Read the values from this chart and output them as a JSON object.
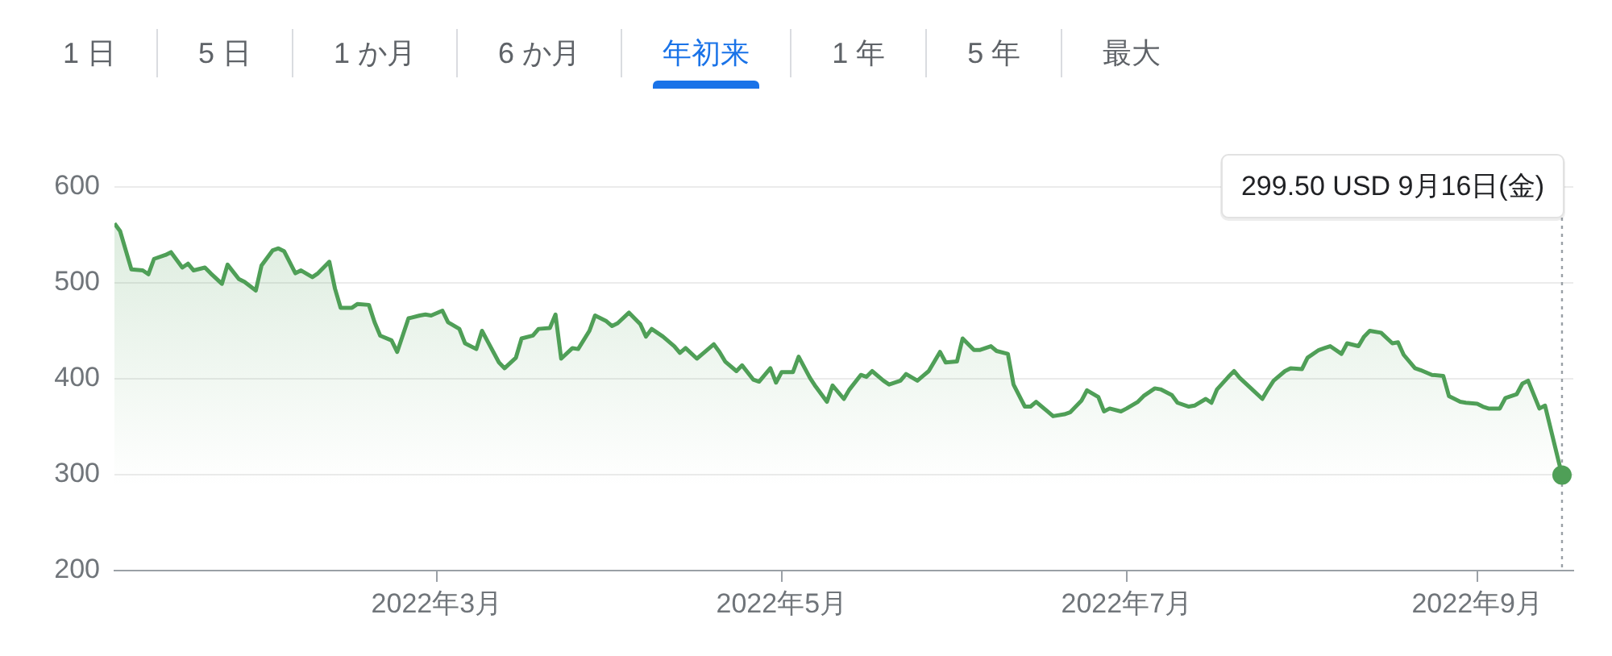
{
  "chart_data": {
    "type": "area",
    "annotations": [
      "1 日",
      "5 日",
      "1 か月",
      "6 か月",
      "年初来",
      "1 年",
      "5 年",
      "最大"
    ],
    "x": [
      "2022-01-03",
      "2022-01-04",
      "2022-01-06",
      "2022-01-08",
      "2022-01-09",
      "2022-01-10",
      "2022-01-12",
      "2022-01-13",
      "2022-01-15",
      "2022-01-16",
      "2022-01-17",
      "2022-01-19",
      "2022-01-20",
      "2022-01-22",
      "2022-01-23",
      "2022-01-25",
      "2022-01-26",
      "2022-01-28",
      "2022-01-29",
      "2022-01-31",
      "2022-02-01",
      "2022-02-02",
      "2022-02-04",
      "2022-02-05",
      "2022-02-07",
      "2022-02-08",
      "2022-02-10",
      "2022-02-11",
      "2022-02-12",
      "2022-02-14",
      "2022-02-15",
      "2022-02-17",
      "2022-02-18",
      "2022-02-19",
      "2022-02-21",
      "2022-02-22",
      "2022-02-24",
      "2022-02-26",
      "2022-02-27",
      "2022-02-28",
      "2022-03-02",
      "2022-03-03",
      "2022-03-05",
      "2022-03-06",
      "2022-03-08",
      "2022-03-09",
      "2022-03-10",
      "2022-03-12",
      "2022-03-13",
      "2022-03-15",
      "2022-03-16",
      "2022-03-18",
      "2022-03-19",
      "2022-03-21",
      "2022-03-22",
      "2022-03-23",
      "2022-03-25",
      "2022-03-26",
      "2022-03-28",
      "2022-03-29",
      "2022-03-31",
      "2022-04-01",
      "2022-04-02",
      "2022-04-04",
      "2022-04-06",
      "2022-04-07",
      "2022-04-08",
      "2022-04-10",
      "2022-04-12",
      "2022-04-13",
      "2022-04-14",
      "2022-04-16",
      "2022-04-17",
      "2022-04-19",
      "2022-04-20",
      "2022-04-21",
      "2022-04-23",
      "2022-04-24",
      "2022-04-26",
      "2022-04-27",
      "2022-04-29",
      "2022-04-30",
      "2022-05-01",
      "2022-05-03",
      "2022-05-04",
      "2022-05-06",
      "2022-05-07",
      "2022-05-09",
      "2022-05-10",
      "2022-05-12",
      "2022-05-13",
      "2022-05-15",
      "2022-05-16",
      "2022-05-17",
      "2022-05-19",
      "2022-05-20",
      "2022-05-22",
      "2022-05-23",
      "2022-05-25",
      "2022-05-26",
      "2022-05-27",
      "2022-05-29",
      "2022-05-30",
      "2022-06-01",
      "2022-06-02",
      "2022-06-04",
      "2022-06-05",
      "2022-06-07",
      "2022-06-08",
      "2022-06-10",
      "2022-06-11",
      "2022-06-13",
      "2022-06-14",
      "2022-06-15",
      "2022-06-17",
      "2022-06-18",
      "2022-06-20",
      "2022-06-21",
      "2022-06-23",
      "2022-06-24",
      "2022-06-26",
      "2022-06-27",
      "2022-06-28",
      "2022-06-30",
      "2022-07-01",
      "2022-07-03",
      "2022-07-04",
      "2022-07-06",
      "2022-07-07",
      "2022-07-09",
      "2022-07-10",
      "2022-07-12",
      "2022-07-13",
      "2022-07-15",
      "2022-07-16",
      "2022-07-17",
      "2022-07-19",
      "2022-07-20",
      "2022-07-21",
      "2022-07-23",
      "2022-07-25",
      "2022-07-26",
      "2022-07-27",
      "2022-07-29",
      "2022-07-30",
      "2022-08-01",
      "2022-08-02",
      "2022-08-04",
      "2022-08-05",
      "2022-08-06",
      "2022-08-08",
      "2022-08-09",
      "2022-08-11",
      "2022-08-12",
      "2022-08-13",
      "2022-08-15",
      "2022-08-17",
      "2022-08-18",
      "2022-08-19",
      "2022-08-21",
      "2022-08-22",
      "2022-08-24",
      "2022-08-26",
      "2022-08-27",
      "2022-08-29",
      "2022-08-30",
      "2022-09-01",
      "2022-09-02",
      "2022-09-03",
      "2022-09-05",
      "2022-09-06",
      "2022-09-08",
      "2022-09-09",
      "2022-09-10",
      "2022-09-12",
      "2022-09-13",
      "2022-09-16"
    ],
    "series": [
      {
        "color": "#4f9f57",
        "values": [
          562,
          554,
          514,
          513,
          509,
          525,
          529,
          532,
          516,
          520,
          513,
          516,
          510,
          499,
          519,
          504,
          501,
          492,
          518,
          534,
          536,
          533,
          510,
          513,
          506,
          510,
          522,
          494,
          474,
          474,
          478,
          477,
          459,
          445,
          440,
          428,
          463,
          466,
          467,
          466,
          471,
          459,
          452,
          437,
          431,
          450,
          439,
          417,
          411,
          422,
          442,
          445,
          452,
          453,
          467,
          421,
          432,
          431,
          450,
          466,
          460,
          455,
          458,
          469,
          457,
          444,
          452,
          444,
          434,
          427,
          432,
          421,
          426,
          436,
          428,
          418,
          408,
          414,
          399,
          397,
          411,
          396,
          407,
          407,
          423,
          401,
          392,
          376,
          393,
          379,
          389,
          404,
          402,
          408,
          398,
          394,
          398,
          405,
          398,
          403,
          408,
          428,
          417,
          418,
          442,
          430,
          430,
          434,
          429,
          426,
          394,
          371,
          371,
          376,
          366,
          361,
          363,
          365,
          377,
          388,
          381,
          366,
          369,
          366,
          369,
          376,
          382,
          390,
          389,
          383,
          375,
          371,
          372,
          379,
          375,
          389,
          402,
          408,
          401,
          390,
          379,
          389,
          398,
          408,
          411,
          410,
          422,
          430,
          432,
          434,
          426,
          437,
          434,
          444,
          450,
          448,
          437,
          438,
          425,
          411,
          409,
          404,
          403,
          382,
          376,
          375,
          374,
          371,
          369,
          369,
          380,
          384,
          395,
          398,
          369,
          372,
          299.5
        ]
      },
      {
        "type": "scatter",
        "marker": "circle",
        "color": "#4f9f57",
        "x": [
          "2022-09-16"
        ],
        "values": [
          299.5
        ]
      }
    ],
    "xlim": [
      "2022-01-03",
      "2022-09-18"
    ],
    "xticks": [
      {
        "value": "2022-03-01",
        "label": "2022年3月"
      },
      {
        "value": "2022-05-01",
        "label": "2022年5月"
      },
      {
        "value": "2022-07-01",
        "label": "2022年7月"
      },
      {
        "value": "2022-09-01",
        "label": "2022年9月"
      }
    ],
    "ylim": [
      200,
      600
    ],
    "yticks": [
      200,
      300,
      400,
      500,
      600
    ],
    "grid": "y",
    "ref_lines": [
      {
        "axis": "x",
        "value": "2022-09-16",
        "label": "299.50 USD 9月16日(金)",
        "color": "#9aa0a6",
        "line_style": "dotted"
      }
    ]
  }
}
